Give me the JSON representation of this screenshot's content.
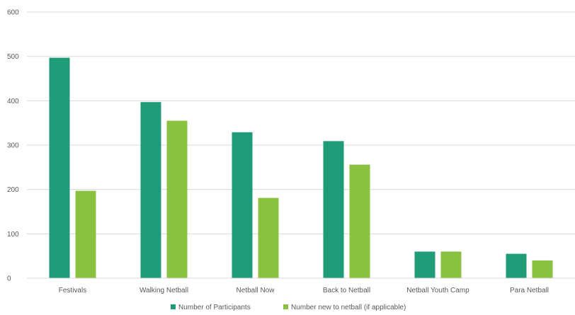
{
  "chart_data": {
    "type": "bar",
    "title": "",
    "xlabel": "",
    "ylabel": "",
    "categories": [
      "Festivals",
      "Walking Netball",
      "Netball Now",
      "Back to Netball",
      "Netball Youth Camp",
      "Para Netball"
    ],
    "series": [
      {
        "name": "Number of Participants",
        "color": "#1E9C78",
        "values": [
          497,
          397,
          329,
          309,
          60,
          55
        ]
      },
      {
        "name": "Number new to netball (if applicable)",
        "color": "#8BC141",
        "values": [
          197,
          355,
          181,
          256,
          60,
          40
        ]
      }
    ],
    "ylim": [
      0,
      600
    ],
    "yticks": [
      "0",
      "100",
      "200",
      "300",
      "400",
      "500",
      "600"
    ],
    "grid": true,
    "legend_position": "bottom"
  }
}
